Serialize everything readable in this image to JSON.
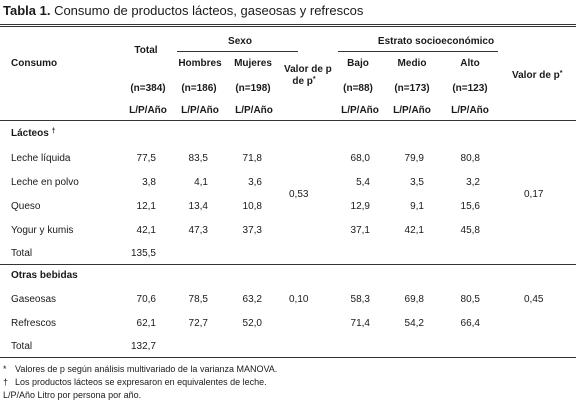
{
  "title": {
    "label": "Tabla 1.",
    "text": " Consumo de productos lácteos, gaseosas y refrescos"
  },
  "header": {
    "consumo": "Consumo",
    "total": "Total",
    "sexo": "Sexo",
    "estrato": "Estrato socioeconómico",
    "hombres": "Hombres",
    "mujeres": "Mujeres",
    "valor_p": "Valor de p",
    "valor_p_sup": "*",
    "bajo": "Bajo",
    "medio": "Medio",
    "alto": "Alto",
    "valor_p2": "Valor de p",
    "valor_p2_sup": "*",
    "n_total": "(n=384)",
    "n_hombres": "(n=186)",
    "n_mujeres": "(n=198)",
    "n_bajo": "(n=88)",
    "n_medio": "(n=173)",
    "n_alto": "(n=123)",
    "unit": "L/P/Año"
  },
  "sections": [
    {
      "name": "Lácteos",
      "sup": "†",
      "rows": [
        {
          "label": "Leche líquida",
          "total": "77,5",
          "hombres": "83,5",
          "mujeres": "71,8",
          "bajo": "68,0",
          "medio": "79,9",
          "alto": "80,8"
        },
        {
          "label": "Leche en polvo",
          "total": "3,8",
          "hombres": "4,1",
          "mujeres": "3,6",
          "bajo": "5,4",
          "medio": "3,5",
          "alto": "3,2"
        },
        {
          "label": "Queso",
          "total": "12,1",
          "hombres": "13,4",
          "mujeres": "10,8",
          "bajo": "12,9",
          "medio": "9,1",
          "alto": "15,6"
        },
        {
          "label": "Yogur y kumis",
          "total": "42,1",
          "hombres": "47,3",
          "mujeres": "37,3",
          "bajo": "37,1",
          "medio": "42,1",
          "alto": "45,8"
        }
      ],
      "p_sexo": "0,53",
      "p_estrato": "0,17",
      "total_label": "Total",
      "total_value": "135,5"
    },
    {
      "name": "Otras bebidas",
      "sup": "",
      "rows": [
        {
          "label": "Gaseosas",
          "total": "70,6",
          "hombres": "78,5",
          "mujeres": "63,2",
          "bajo": "58,3",
          "medio": "69,8",
          "alto": "80,5"
        },
        {
          "label": "Refrescos",
          "total": "62,1",
          "hombres": "72,7",
          "mujeres": "52,0",
          "bajo": "71,4",
          "medio": "54,2",
          "alto": "66,4"
        }
      ],
      "p_sexo": "0,10",
      "p_estrato": "0,45",
      "total_label": "Total",
      "total_value": "132,7"
    }
  ],
  "footnotes": [
    {
      "mark": "*",
      "text": "Valores de p según análisis multivariado de la varianza MANOVA."
    },
    {
      "mark": "†",
      "text": "Los productos lácteos se expresaron en equivalentes de leche."
    },
    {
      "mark": "",
      "text": "L/P/Año Litro por persona por año."
    }
  ]
}
